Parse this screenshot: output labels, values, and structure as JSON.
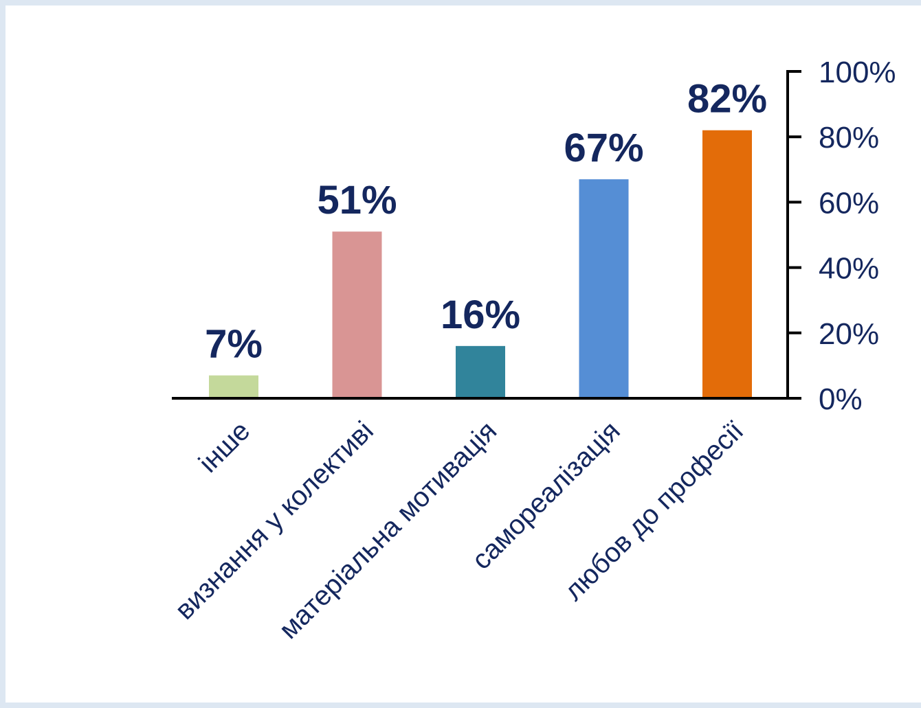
{
  "chart_data": {
    "type": "bar",
    "categories": [
      "інше",
      "визнання у колективі",
      "матеріальна мотивація",
      "самореалізація",
      "любов до професії"
    ],
    "values": [
      7,
      51,
      16,
      67,
      82
    ],
    "data_labels": [
      "7%",
      "51%",
      "16%",
      "67%",
      "82%"
    ],
    "colors": [
      "#c4d99b",
      "#d99594",
      "#31849b",
      "#558ed5",
      "#e36c09"
    ],
    "title": "",
    "xlabel": "",
    "ylabel": "",
    "ylim": [
      0,
      100
    ],
    "yticks": [
      0,
      20,
      40,
      60,
      80,
      100
    ],
    "ytick_labels": [
      "0%",
      "20%",
      "40%",
      "60%",
      "80%",
      "100%"
    ],
    "y_axis_side": "right",
    "grid": false,
    "legend": "none",
    "text_color": "#14275e",
    "axis_color": "#000000"
  }
}
